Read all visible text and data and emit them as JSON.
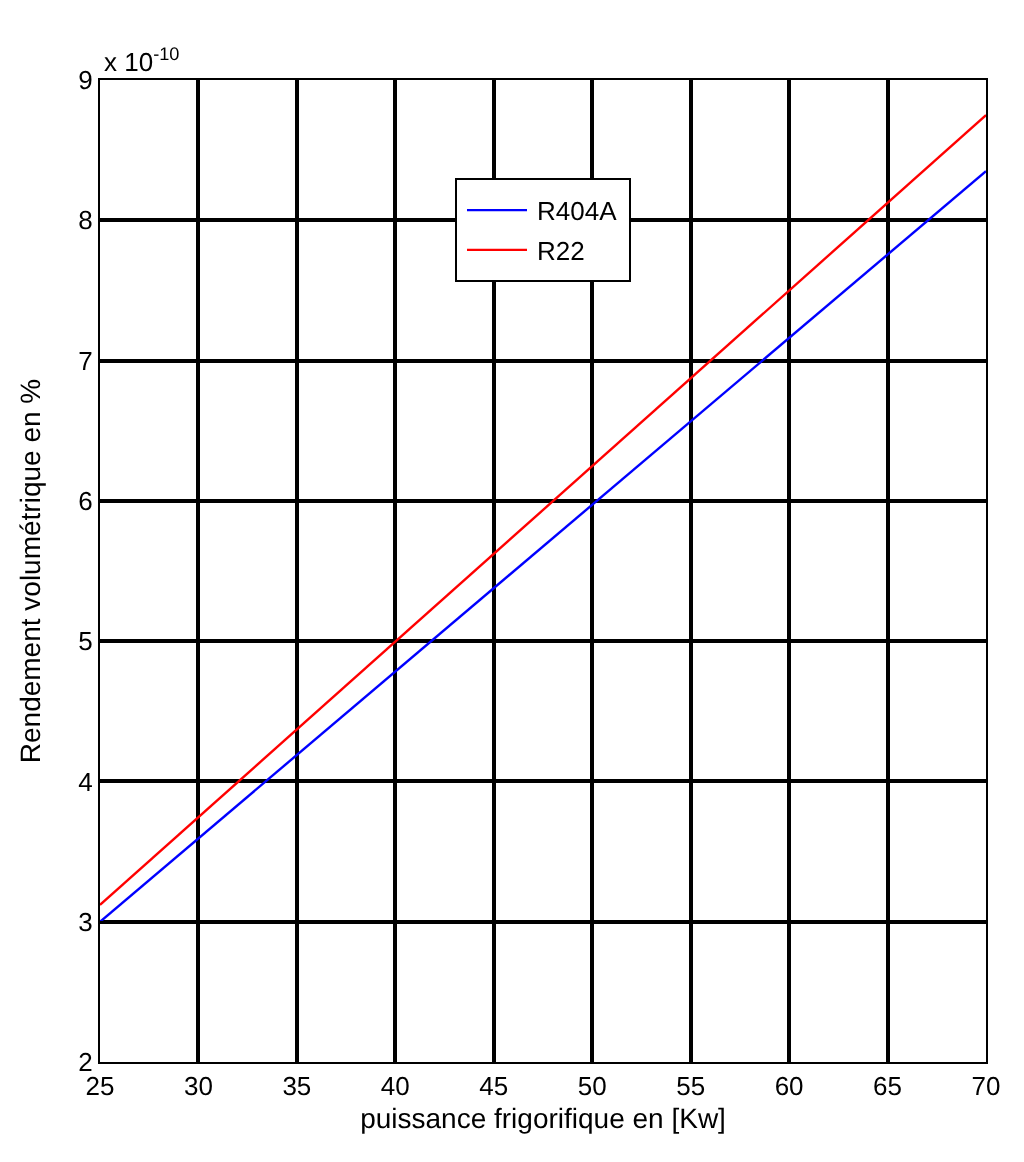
{
  "chart_data": {
    "type": "line",
    "xlabel": "puissance frigorifique en [Kw]",
    "ylabel": "Rendement volumétrique en %",
    "annotations": [
      "x 10$^{-10}$"
    ],
    "x": [
      25,
      70
    ],
    "series": [
      {
        "name": "R404A",
        "color": "#0000ff",
        "values": [
          3.0,
          8.35
        ]
      },
      {
        "name": "R22",
        "color": "#ff0000",
        "values": [
          3.12,
          8.75
        ]
      }
    ],
    "xlim": [
      25,
      70
    ],
    "xticks": [
      25,
      30,
      35,
      40,
      45,
      50,
      55,
      60,
      65,
      70
    ],
    "ylim": [
      2,
      9
    ],
    "yticks": [
      2,
      3,
      4,
      5,
      6,
      7,
      8,
      9
    ],
    "grid": true,
    "legend": "top",
    "marker": "none",
    "line_style": "solid"
  }
}
